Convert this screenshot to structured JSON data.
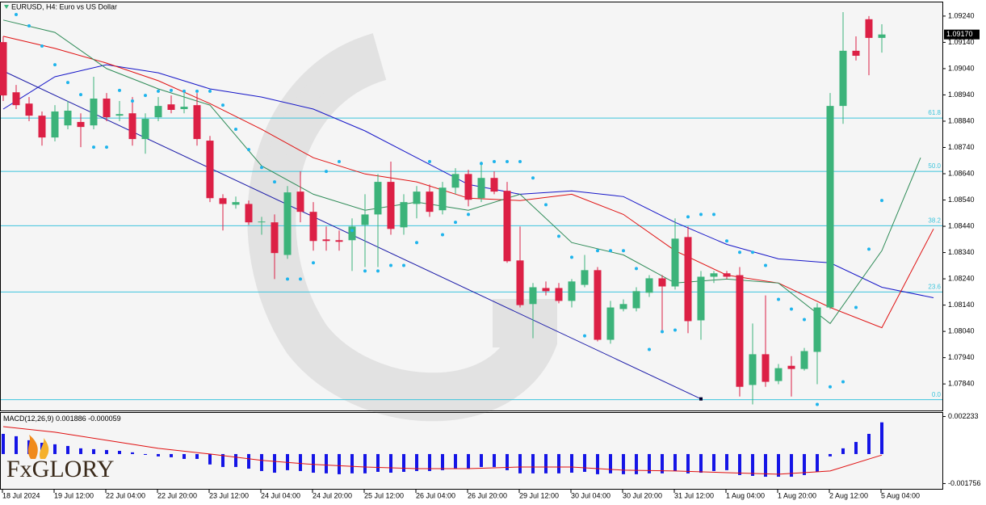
{
  "logo": "FxGLORY",
  "chart_data": [
    {
      "type": "candlestick",
      "title": "EURUSD, H4: Euro vs US Dollar",
      "categories": [
        "18 Jul 2024",
        null,
        null,
        null,
        "19 Jul 12:00",
        null,
        null,
        null,
        "22 Jul 04:00",
        null,
        null,
        null,
        "22 Jul 20:00",
        null,
        null,
        null,
        "23 Jul 12:00",
        null,
        null,
        null,
        "24 Jul 04:00",
        null,
        null,
        null,
        "24 Jul 20:00",
        null,
        null,
        null,
        "25 Jul 12:00",
        null,
        null,
        null,
        "26 Jul 04:00",
        null,
        null,
        null,
        "26 Jul 20:00",
        null,
        null,
        null,
        "29 Jul 12:00",
        null,
        null,
        null,
        "30 Jul 04:00",
        null,
        null,
        null,
        "30 Jul 20:00",
        null,
        null,
        null,
        "31 Jul 12:00",
        null,
        null,
        null,
        "1 Aug 04:00",
        null,
        null,
        null,
        "1 Aug 20:00",
        null,
        null,
        null,
        "2 Aug 12:00",
        null,
        null,
        null,
        "5 Aug 04:00"
      ],
      "open": [
        1.09141,
        1.0895,
        1.08907,
        1.08861,
        1.08778,
        1.08824,
        1.08837,
        1.08824,
        1.08926,
        1.08861,
        1.0887,
        1.08772,
        1.08855,
        1.08904,
        1.08886,
        1.08901,
        1.08766,
        1.08547,
        1.08522,
        1.08525,
        1.08455,
        1.08455,
        1.08331,
        1.08572,
        1.08495,
        1.0839,
        1.08387,
        1.08387,
        1.08445,
        1.08485,
        1.08609,
        1.08436,
        1.08525,
        1.08572,
        1.08501,
        1.08587,
        1.08639,
        1.08547,
        1.08624,
        1.08575,
        1.0831,
        1.08144,
        1.08205,
        1.08205,
        1.08156,
        1.08217,
        1.08273,
        1.08008,
        1.08125,
        1.08128,
        1.08187,
        1.08242,
        1.08211,
        1.08399,
        1.08082,
        1.08248,
        1.08261,
        1.08254,
        1.07836,
        1.07953,
        1.07851,
        1.07909,
        1.07897,
        1.07962,
        1.08131,
        1.08898,
        1.09108,
        1.09228,
        1.09157
      ],
      "high": [
        1.09163,
        1.08978,
        1.08932,
        1.08877,
        1.08901,
        1.08917,
        1.0887,
        1.09009,
        1.08947,
        1.08917,
        1.08932,
        1.0887,
        1.08932,
        1.08938,
        1.08947,
        1.08947,
        1.08784,
        1.08562,
        1.08553,
        1.08538,
        1.08476,
        1.08485,
        1.08593,
        1.08649,
        1.08532,
        1.08439,
        1.08424,
        1.0847,
        1.08562,
        1.08639,
        1.08686,
        1.08562,
        1.08593,
        1.08599,
        1.08609,
        1.08661,
        1.08655,
        1.08686,
        1.08649,
        1.08609,
        1.08439,
        1.08224,
        1.0823,
        1.08224,
        1.08239,
        1.08331,
        1.08285,
        1.08156,
        1.08162,
        1.08208,
        1.08254,
        1.08254,
        1.0847,
        1.08439,
        1.0827,
        1.0827,
        1.0827,
        1.08285,
        1.0807,
        1.08177,
        1.07916,
        1.07946,
        1.07977,
        1.08147,
        1.08947,
        1.09255,
        1.09163,
        1.0924,
        1.09209
      ],
      "low": [
        1.08917,
        1.08886,
        1.0884,
        1.08747,
        1.08763,
        1.08809,
        1.08741,
        1.08809,
        1.0884,
        1.0884,
        1.08747,
        1.08716,
        1.0884,
        1.0887,
        1.0887,
        1.08747,
        1.08532,
        1.08424,
        1.08507,
        1.08445,
        1.08408,
        1.08239,
        1.08316,
        1.08455,
        1.08347,
        1.08347,
        1.08347,
        1.0827,
        1.08285,
        1.08285,
        1.08408,
        1.08408,
        1.0847,
        1.08476,
        1.08485,
        1.08562,
        1.08516,
        1.08532,
        1.08562,
        1.08301,
        1.08131,
        1.08014,
        1.08177,
        1.08147,
        1.08131,
        1.08208,
        1.08002,
        1.07993,
        1.08116,
        1.08116,
        1.08171,
        1.08039,
        1.08199,
        1.08033,
        1.08008,
        1.08224,
        1.08239,
        1.07792,
        1.07762,
        1.07829,
        1.07839,
        1.07792,
        1.07891,
        1.07839,
        1.08125,
        1.0883,
        1.09071,
        1.09015,
        1.09101
      ],
      "close": [
        1.08938,
        1.08901,
        1.08861,
        1.08778,
        1.08877,
        1.0888,
        1.08818,
        1.08926,
        1.08855,
        1.08867,
        1.08772,
        1.08849,
        1.08898,
        1.08883,
        1.08895,
        1.08772,
        1.08547,
        1.08525,
        1.08532,
        1.08455,
        1.08458,
        1.08338,
        1.08569,
        1.08495,
        1.08384,
        1.08384,
        1.08381,
        1.08439,
        1.08485,
        1.08609,
        1.0843,
        1.08532,
        1.08572,
        1.08495,
        1.08587,
        1.08639,
        1.08541,
        1.08624,
        1.08572,
        1.08307,
        1.0814,
        1.08208,
        1.08193,
        1.08156,
        1.0823,
        1.08273,
        1.08008,
        1.08131,
        1.08144,
        1.08193,
        1.08242,
        1.08211,
        1.08393,
        1.08079,
        1.08248,
        1.08261,
        1.08248,
        1.07829,
        1.07953,
        1.07848,
        1.079,
        1.07897,
        1.07965,
        1.08131,
        1.08898,
        1.09108,
        1.09089,
        1.09157,
        1.0917
      ],
      "up_color": "#3cb37a",
      "down_color": "#dc2045",
      "ylim": [
        1.07739,
        1.09292
      ],
      "yticks": [
        {
          "value": 1.0924,
          "label": "1.09240"
        },
        {
          "value": 1.0914,
          "label": "1.09140"
        },
        {
          "value": 1.0904,
          "label": "1.09040"
        },
        {
          "value": 1.0894,
          "label": "1.08940"
        },
        {
          "value": 1.0884,
          "label": "1.08840"
        },
        {
          "value": 1.0874,
          "label": "1.08740"
        },
        {
          "value": 1.0864,
          "label": "1.08640"
        },
        {
          "value": 1.0854,
          "label": "1.08540"
        },
        {
          "value": 1.0844,
          "label": "1.08440"
        },
        {
          "value": 1.0834,
          "label": "1.08340"
        },
        {
          "value": 1.0824,
          "label": "1.08240"
        },
        {
          "value": 1.0814,
          "label": "1.08140"
        },
        {
          "value": 1.0804,
          "label": "1.08040"
        },
        {
          "value": 1.0794,
          "label": "1.07940"
        },
        {
          "value": 1.0784,
          "label": "1.07840"
        }
      ],
      "grid": false,
      "last_price": {
        "value": 1.0917,
        "label": "1.09170"
      },
      "lines": [
        {
          "color": "#1515c8",
          "x": [
            0,
            4,
            8,
            12,
            16,
            20,
            24,
            28,
            32,
            36,
            40,
            44,
            48,
            52,
            56,
            60,
            64,
            68,
            72
          ],
          "values": [
            1.08886,
            1.09009,
            1.09055,
            1.09024,
            1.08963,
            1.08932,
            1.08886,
            1.08803,
            1.08701,
            1.08599,
            1.08562,
            1.08575,
            1.08553,
            1.08455,
            1.08371,
            1.08316,
            1.08301,
            1.08208,
            1.08168
          ]
        },
        {
          "color": "#e01010",
          "x": [
            0,
            4,
            8,
            12,
            16,
            20,
            24,
            28,
            32,
            36,
            40,
            44,
            48,
            52,
            56,
            60,
            64,
            68,
            72
          ],
          "values": [
            1.09163,
            1.09117,
            1.09061,
            1.08994,
            1.08907,
            1.08809,
            1.08701,
            1.08639,
            1.08609,
            1.08547,
            1.08538,
            1.08562,
            1.08485,
            1.08347,
            1.08254,
            1.08224,
            1.08131,
            1.08054,
            1.0843
          ]
        },
        {
          "color": "#2e8b57",
          "x": [
            0,
            4,
            8,
            12,
            16,
            20,
            24,
            28,
            32,
            36,
            40,
            44,
            48,
            52,
            56,
            60,
            64,
            68,
            71
          ],
          "values": [
            1.09225,
            1.09178,
            1.0904,
            1.08963,
            1.08901,
            1.0867,
            1.08562,
            1.08501,
            1.08532,
            1.08501,
            1.08562,
            1.08378,
            1.08331,
            1.08224,
            1.08239,
            1.08224,
            1.0807,
            1.08347,
            1.08701
          ]
        }
      ],
      "sar": {
        "color": "#1eb4ec",
        "x": [
          1,
          2,
          3,
          4,
          5,
          6,
          7,
          8,
          9,
          10,
          11,
          12,
          13,
          14,
          15,
          16,
          17,
          18,
          19,
          20,
          21,
          22,
          23,
          24,
          25,
          26,
          27,
          28,
          29,
          30,
          31,
          32,
          33,
          34,
          35,
          36,
          37,
          38,
          39,
          40,
          41,
          42,
          43,
          44,
          45,
          46,
          47,
          48,
          49,
          50,
          51,
          52,
          53,
          54,
          55,
          56,
          57,
          58,
          59,
          60,
          61,
          62,
          63,
          64,
          65,
          66,
          67,
          68
        ],
        "values": [
          1.09246,
          1.09203,
          1.09126,
          1.09055,
          1.08987,
          1.08941,
          1.08741,
          1.08741,
          1.08957,
          1.08917,
          1.08938,
          1.08954,
          1.08957,
          1.08954,
          1.08954,
          1.08954,
          1.08901,
          1.08809,
          1.08732,
          1.08664,
          1.08609,
          1.08239,
          1.08239,
          1.08301,
          1.08649,
          1.08686,
          1.08424,
          1.0827,
          1.0827,
          1.08291,
          1.08291,
          1.08378,
          1.08686,
          1.08408,
          1.08455,
          1.08485,
          1.08679,
          1.08686,
          1.08686,
          1.08686,
          1.08624,
          1.08522,
          1.08402,
          1.08322,
          1.08023,
          1.08347,
          1.08347,
          1.08347,
          1.08279,
          1.07971,
          1.08039,
          1.08045,
          1.08476,
          1.08485,
          1.08485,
          1.08384,
          1.08341,
          1.08341,
          1.08291,
          1.08162,
          1.08125,
          1.08085,
          1.07762,
          1.07829,
          1.07848,
          1.08131,
          1.08353,
          1.08538
        ]
      },
      "trendline": {
        "color": "#1a1aa8",
        "x": [
          0,
          54
        ],
        "values": [
          1.09031,
          1.07783
        ]
      },
      "fib_color": "#3cc4dc",
      "fib_levels": [
        {
          "value": 1.08852,
          "label": "61.8"
        },
        {
          "value": 1.08649,
          "label": "50.0"
        },
        {
          "value": 1.08442,
          "label": "38.2"
        },
        {
          "value": 1.0819,
          "label": "23.6"
        },
        {
          "value": 1.0778,
          "label": "0.0"
        }
      ]
    },
    {
      "type": "bar",
      "title": "MACD(12,26,9)",
      "color": "#1414e6",
      "values": [
        0.0012,
        0.00106,
        0.00082,
        0.00067,
        0.00058,
        0.00048,
        0.00034,
        0.00029,
        0.00024,
        0.00019,
        0.0001,
        -5e-05,
        -0.00014,
        -0.00019,
        -0.00029,
        -0.00029,
        -0.00062,
        -0.00077,
        -0.00077,
        -0.00087,
        -0.00101,
        -0.00111,
        -0.00096,
        -0.00101,
        -0.00111,
        -0.00115,
        -0.0012,
        -0.00115,
        -0.00115,
        -0.00106,
        -0.00111,
        -0.00106,
        -0.00101,
        -0.00101,
        -0.00096,
        -0.00087,
        -0.00087,
        -0.00077,
        -0.00077,
        -0.00096,
        -0.00115,
        -0.00115,
        -0.00115,
        -0.00115,
        -0.00111,
        -0.00106,
        -0.0012,
        -0.00115,
        -0.0012,
        -0.0012,
        -0.00115,
        -0.00115,
        -0.00101,
        -0.00115,
        -0.00111,
        -0.00101,
        -0.00096,
        -0.00125,
        -0.0013,
        -0.00135,
        -0.00135,
        -0.00135,
        -0.00125,
        -0.00106,
        -0.00014,
        0.00034,
        0.00072,
        0.0012,
        0.001886
      ],
      "signal": {
        "color": "#e01010",
        "x": [
          0,
          4,
          8,
          12,
          16,
          20,
          24,
          28,
          32,
          36,
          40,
          44,
          48,
          52,
          56,
          60,
          64,
          68
        ],
        "values": [
          0.00163,
          0.0013,
          0.00082,
          0.00034,
          0,
          -0.00038,
          -0.00062,
          -0.00077,
          -0.00087,
          -0.00087,
          -0.00077,
          -0.00077,
          -0.00096,
          -0.00101,
          -0.00111,
          -0.0012,
          -0.00101,
          -5.9e-05
        ]
      },
      "ylim": [
        -0.00207,
        0.0024
      ],
      "yticks": [
        0.002233,
        -0.001756
      ]
    }
  ]
}
